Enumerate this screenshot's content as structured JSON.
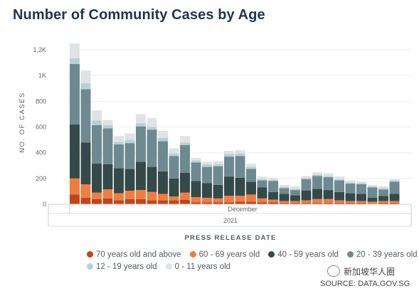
{
  "title": "Number of Community Cases by Age",
  "legend_rows": [
    [
      0,
      1,
      2,
      3
    ],
    [
      4,
      5
    ]
  ],
  "watermark": "新加坡华人圈",
  "source": "SOURCE: DATA.GOV.SG",
  "chart_data": {
    "type": "bar",
    "stacked": true,
    "xlabel": "PRESS RELEASE DATE",
    "ylabel": "NO. OF CASES",
    "ylim": [
      0,
      1300
    ],
    "yticks": [
      {
        "value": 0,
        "label": "0"
      },
      {
        "value": 200,
        "label": "200"
      },
      {
        "value": 400,
        "label": "400"
      },
      {
        "value": 600,
        "label": "600"
      },
      {
        "value": 800,
        "label": "800"
      },
      {
        "value": 1000,
        "label": "1K"
      },
      {
        "value": 1200,
        "label": "1,2K"
      }
    ],
    "x_period_label": "December",
    "x_year_label": "2021",
    "grid": true,
    "legend_position": "bottom",
    "series": [
      {
        "name": "70 years old and above",
        "color": "#c2441a",
        "values": [
          75,
          50,
          40,
          45,
          30,
          40,
          40,
          30,
          30,
          30,
          35,
          15,
          15,
          15,
          15,
          20,
          20,
          15,
          15,
          10,
          10,
          10,
          10,
          10,
          10,
          10,
          10,
          5,
          10,
          10
        ]
      },
      {
        "name": "60 - 69 years old",
        "color": "#f07d3f",
        "values": [
          125,
          105,
          50,
          70,
          55,
          65,
          70,
          65,
          50,
          30,
          55,
          40,
          35,
          30,
          50,
          45,
          55,
          30,
          20,
          15,
          15,
          20,
          30,
          30,
          20,
          15,
          15,
          15,
          15,
          15
        ]
      },
      {
        "name": "40 - 59 years old",
        "color": "#344a4a",
        "values": [
          420,
          325,
          225,
          195,
          195,
          170,
          220,
          195,
          175,
          140,
          155,
          125,
          115,
          105,
          150,
          140,
          100,
          85,
          60,
          55,
          45,
          75,
          80,
          70,
          65,
          60,
          55,
          30,
          40,
          55
        ]
      },
      {
        "name": "20 - 39 years old",
        "color": "#6e8a91",
        "values": [
          470,
          415,
          300,
          280,
          185,
          200,
          275,
          290,
          235,
          175,
          215,
          145,
          125,
          145,
          155,
          170,
          100,
          55,
          85,
          45,
          40,
          90,
          100,
          100,
          90,
          75,
          75,
          80,
          50,
          95
        ]
      },
      {
        "name": "12 - 19 years old",
        "color": "#b7d0d3",
        "values": [
          45,
          45,
          35,
          25,
          20,
          25,
          25,
          20,
          25,
          20,
          20,
          15,
          20,
          15,
          20,
          20,
          15,
          10,
          10,
          10,
          10,
          10,
          10,
          10,
          10,
          10,
          10,
          10,
          10,
          10
        ]
      },
      {
        "name": "0 - 11 years old",
        "color": "#dfe3e5",
        "values": [
          115,
          100,
          80,
          40,
          45,
          50,
          70,
          70,
          55,
          40,
          50,
          20,
          20,
          25,
          25,
          25,
          25,
          20,
          15,
          15,
          20,
          15,
          20,
          20,
          20,
          15,
          10,
          10,
          15,
          10
        ]
      }
    ]
  }
}
